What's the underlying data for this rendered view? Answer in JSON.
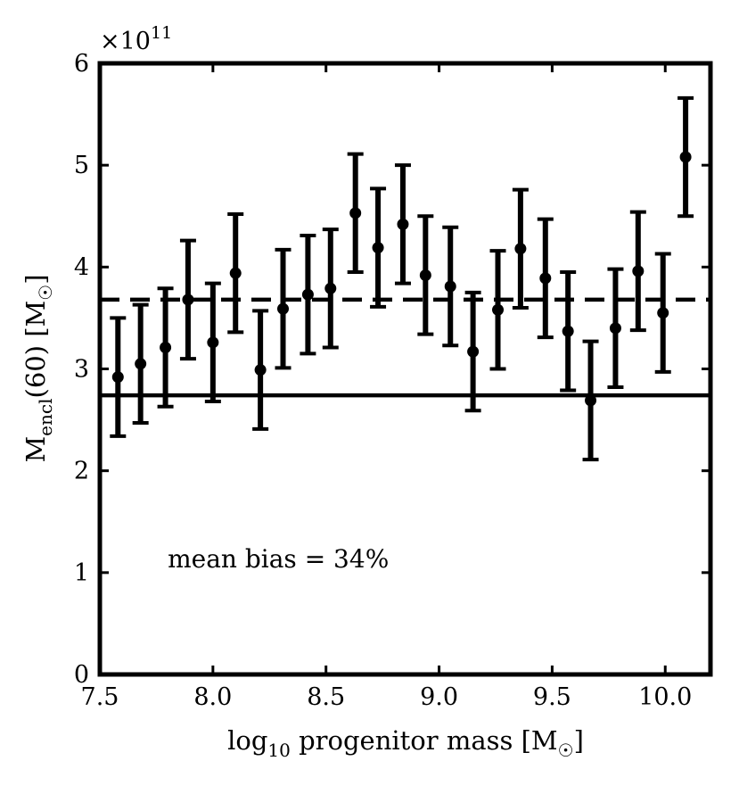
{
  "chart_data": {
    "type": "scatter",
    "title": "",
    "xlabel": "log10 progenitor mass [M☉]",
    "xlabel_parts": {
      "pre": "log",
      "sub": "10",
      "post": " progenitor mass [M",
      "sun": "☉",
      "close": "]"
    },
    "ylabel": "Mencl(60) [M☉]",
    "ylabel_parts": {
      "pre": "M",
      "sub": "encl",
      "post": "(60) [M",
      "sun": "☉",
      "close": "]"
    },
    "y_scale_text": {
      "base": "×10",
      "exp": "11"
    },
    "xlim": [
      7.5,
      10.2
    ],
    "ylim": [
      0,
      6
    ],
    "x_ticks": [
      7.5,
      8.0,
      8.5,
      9.0,
      9.5,
      10.0
    ],
    "x_tick_labels": [
      "7.5",
      "8.0",
      "8.5",
      "9.0",
      "9.5",
      "10.0"
    ],
    "y_ticks": [
      0,
      1,
      2,
      3,
      4,
      5,
      6
    ],
    "y_tick_labels": [
      "0",
      "1",
      "2",
      "3",
      "4",
      "5",
      "6"
    ],
    "grid": false,
    "series": [
      {
        "x": [
          7.58,
          7.68,
          7.79,
          7.89,
          8.0,
          8.1,
          8.21,
          8.31,
          8.42,
          8.52,
          8.63,
          8.73,
          8.84,
          8.94,
          9.05,
          9.15,
          9.26,
          9.36,
          9.47,
          9.57,
          9.67,
          9.78,
          9.88,
          9.99,
          10.09
        ],
        "y": [
          2.92,
          3.05,
          3.21,
          3.68,
          3.26,
          3.94,
          2.99,
          3.59,
          3.73,
          3.79,
          4.53,
          4.19,
          4.42,
          3.92,
          3.81,
          3.17,
          3.58,
          4.18,
          3.89,
          3.37,
          2.69,
          3.4,
          3.96,
          3.55,
          5.08
        ],
        "yerr": 0.58,
        "marker": "circle",
        "color": "#000000"
      }
    ],
    "reference_lines": [
      {
        "y": 2.74,
        "style": "solid",
        "color": "#000000"
      },
      {
        "y": 3.68,
        "style": "dashed",
        "color": "#000000"
      }
    ],
    "annotation": {
      "text": "mean bias = 34%",
      "x": 7.8,
      "y": 1.05
    }
  }
}
